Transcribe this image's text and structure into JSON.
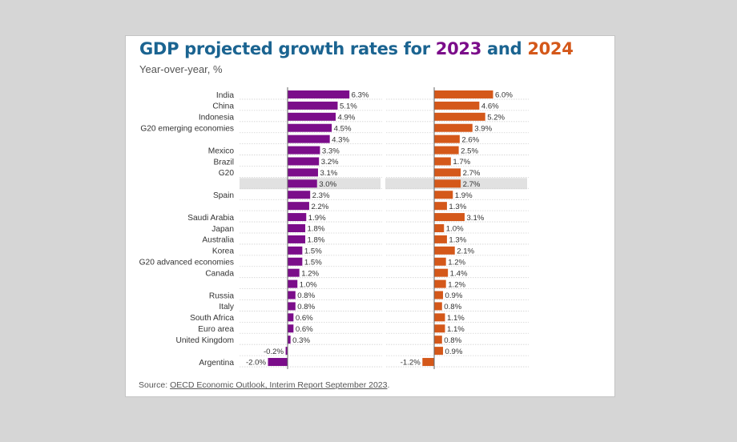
{
  "title": {
    "prefix": "GDP projected growth rates for ",
    "year1": "2023",
    "conjunction": " and ",
    "year2": "2024"
  },
  "subtitle": "Year-over-year, %",
  "source": {
    "prefix": "Source: ",
    "link": "OECD Economic Outlook, Interim Report September 2023",
    "suffix": "."
  },
  "colors": {
    "y2023": "#7b0d8a",
    "y2024": "#d4581a",
    "title": "#1b6491",
    "highlight": "#e1e1e1"
  },
  "chart_data": {
    "type": "bar",
    "orientation": "horizontal",
    "value_suffix": "%",
    "categories": [
      "India",
      "China",
      "Indonesia",
      "G20 emerging economies",
      "",
      "Mexico",
      "Brazil",
      "G20",
      "",
      "Spain",
      "",
      "Saudi Arabia",
      "Japan",
      "Australia",
      "Korea",
      "G20 advanced economies",
      "Canada",
      "",
      "Russia",
      "Italy",
      "South Africa",
      "Euro area",
      "United Kingdom",
      "",
      "Argentina"
    ],
    "highlighted_row_index": 8,
    "series": [
      {
        "name": "2023",
        "values": [
          6.3,
          5.1,
          4.9,
          4.5,
          4.3,
          3.3,
          3.2,
          3.1,
          3.0,
          2.3,
          2.2,
          1.9,
          1.8,
          1.8,
          1.5,
          1.5,
          1.2,
          1.0,
          0.8,
          0.8,
          0.6,
          0.6,
          0.3,
          -0.2,
          -2.0
        ]
      },
      {
        "name": "2024",
        "values": [
          6.0,
          4.6,
          5.2,
          3.9,
          2.6,
          2.5,
          1.7,
          2.7,
          2.7,
          1.9,
          1.3,
          3.1,
          1.0,
          1.3,
          2.1,
          1.2,
          1.4,
          1.2,
          0.9,
          0.8,
          1.1,
          1.1,
          0.8,
          0.9,
          -1.2
        ]
      }
    ]
  }
}
